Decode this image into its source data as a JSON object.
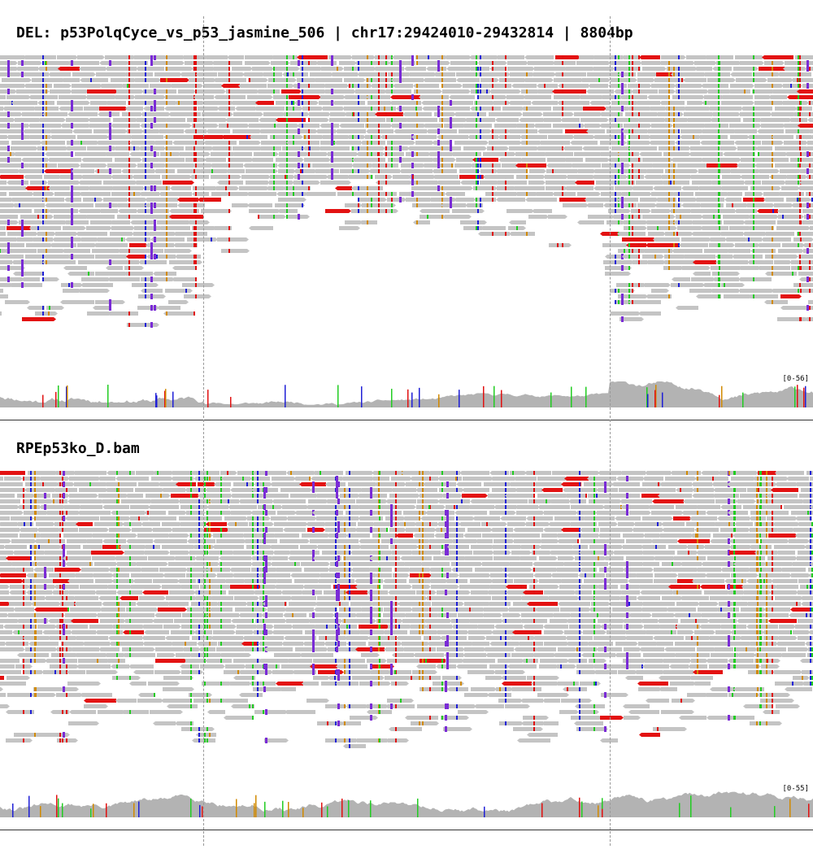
{
  "panels": [
    {
      "title": "DEL: p53PolqCyce_vs_p53_jasmine_506 | chr17:29424010-29432814 | 8804bp",
      "coverage_range": "[0-56]"
    },
    {
      "title": "RPEp53ko_D.bam",
      "coverage_range": "[0-55]"
    }
  ],
  "colors": {
    "read": "#c4c4c4",
    "coverage": "#b3b3b3",
    "mismatch_A": "#22cc22",
    "mismatch_C": "#1f1fd6",
    "mismatch_G": "#d18a00",
    "mismatch_T": "#e01010",
    "insertion": "#7a2bd6",
    "discordant": "#e31212"
  }
}
